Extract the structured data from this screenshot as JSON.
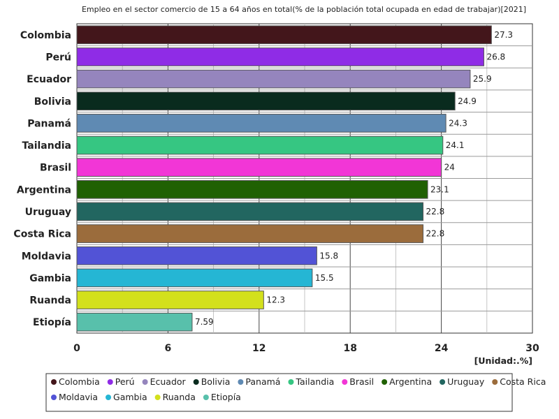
{
  "chart_data": {
    "type": "bar",
    "orientation": "horizontal",
    "title": "Empleo en el sector comercio de 15 a 64 años en total(% de la población total ocupada en edad de trabajar)[2021]",
    "unit_label": "[Unidad:.%]",
    "categories": [
      "Colombia",
      "Perú",
      "Ecuador",
      "Bolivia",
      "Panamá",
      "Tailandia",
      "Brasil",
      "Argentina",
      "Uruguay",
      "Costa Rica",
      "Moldavia",
      "Gambia",
      "Ruanda",
      "Etiopía"
    ],
    "values": [
      27.3,
      26.8,
      25.9,
      24.9,
      24.3,
      24.1,
      24,
      23.1,
      22.8,
      22.8,
      15.8,
      15.5,
      12.3,
      7.59
    ],
    "value_labels": [
      "27.3",
      "26.8",
      "25.9",
      "24.9",
      "24.3",
      "24.1",
      "24",
      "23.1",
      "22.8",
      "22.8",
      "15.8",
      "15.5",
      "12.3",
      "7.59"
    ],
    "colors": [
      "#43161b",
      "#8f2ce6",
      "#9585bd",
      "#092b1e",
      "#5f8ab3",
      "#36c682",
      "#f236d6",
      "#206103",
      "#226660",
      "#9b6c3c",
      "#5253d6",
      "#25b6d4",
      "#d3e01c",
      "#58c0ab"
    ],
    "xlim": [
      0,
      30
    ],
    "x_ticks": [
      0,
      6,
      12,
      18,
      24,
      30
    ],
    "x_tick_labels": [
      "0",
      "6",
      "12",
      "18",
      "24",
      "30"
    ],
    "grid": true,
    "legend_position": "bottom"
  }
}
